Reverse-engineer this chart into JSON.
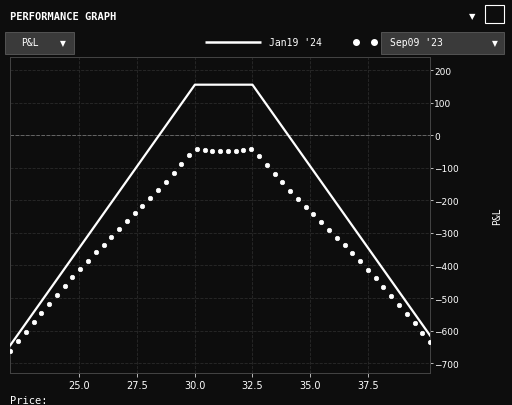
{
  "bg_color": "#0d0d0d",
  "header_color": "#1c1c1c",
  "plot_bg_color": "#0d0d0d",
  "grid_color": "#2a2a2a",
  "line_color": "#ffffff",
  "text_color": "#ffffff",
  "title": "PERFORMANCE GRAPH",
  "xlabel": "Price:",
  "ylabel": "P&L",
  "x_ticks": [
    25.0,
    27.5,
    30.0,
    32.5,
    35.0,
    37.5
  ],
  "x_min": 22.0,
  "x_max": 40.2,
  "y_min": -730,
  "y_max": 240,
  "y_ticks": [
    200,
    100,
    0,
    -100,
    -200,
    -300,
    -400,
    -500,
    -600,
    -700
  ],
  "legend_solid": "Jan19 '24",
  "legend_dotted": "Sep09 '23",
  "strike_low": 30.0,
  "strike_high": 32.5,
  "premium": 155,
  "dotted_sigma": 4.2,
  "dotted_peak_x": 31.25,
  "dotted_peak_y": -50
}
